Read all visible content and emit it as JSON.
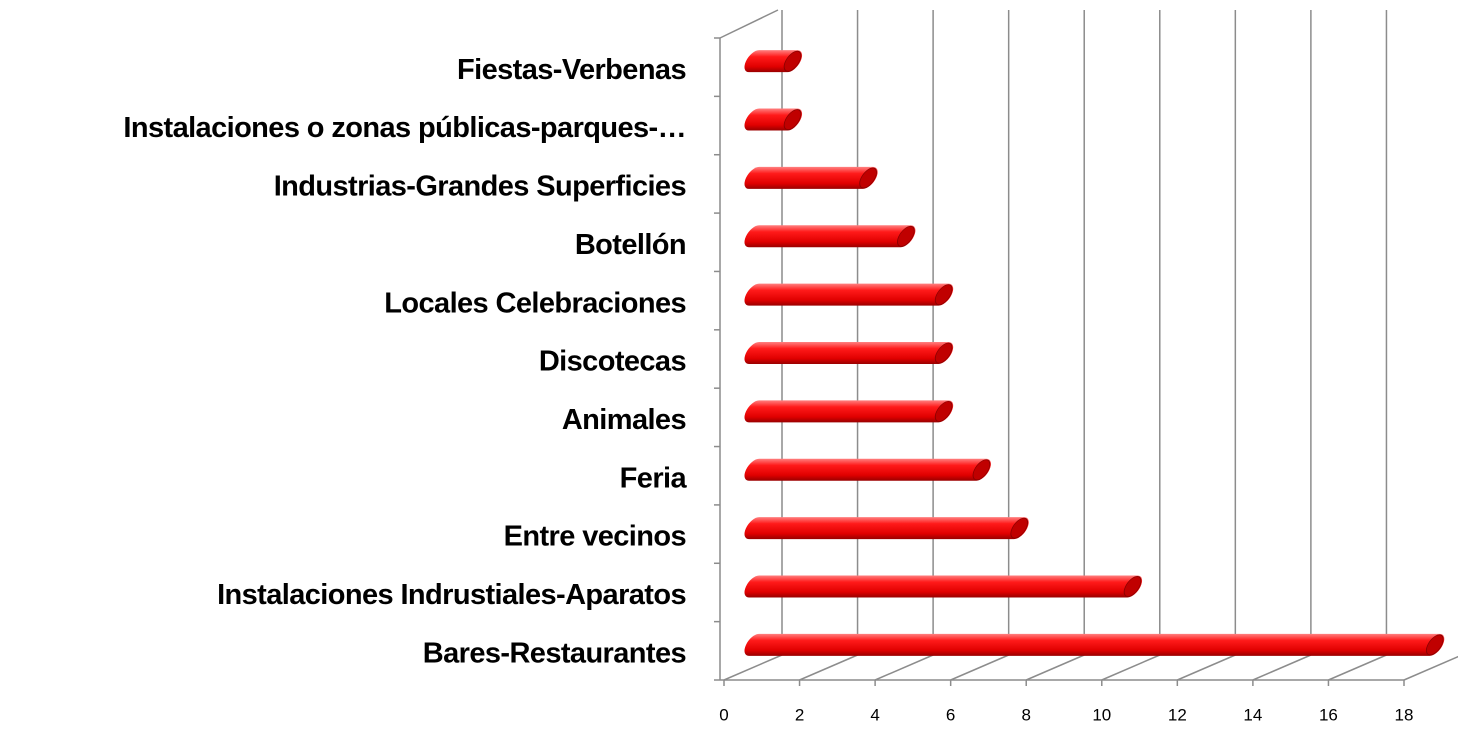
{
  "chart_data": {
    "type": "bar3d-horizontal",
    "categories": [
      "Fiestas-Verbenas",
      "Instalaciones o zonas públicas-parques-…",
      "Industrias-Grandes Superficies",
      "Botellón",
      "Locales Celebraciones",
      "Discotecas",
      "Animales",
      "Feria",
      "Entre vecinos",
      "Instalaciones Indrustiales-Aparatos",
      "Bares-Restaurantes"
    ],
    "values": [
      2,
      2,
      4,
      5,
      6,
      6,
      6,
      7,
      8,
      11,
      19
    ],
    "color": "#ff0000",
    "xlim": [
      0,
      18
    ],
    "xticks": [
      0,
      2,
      4,
      6,
      8,
      10,
      12,
      14,
      16,
      18
    ],
    "grid": true
  }
}
